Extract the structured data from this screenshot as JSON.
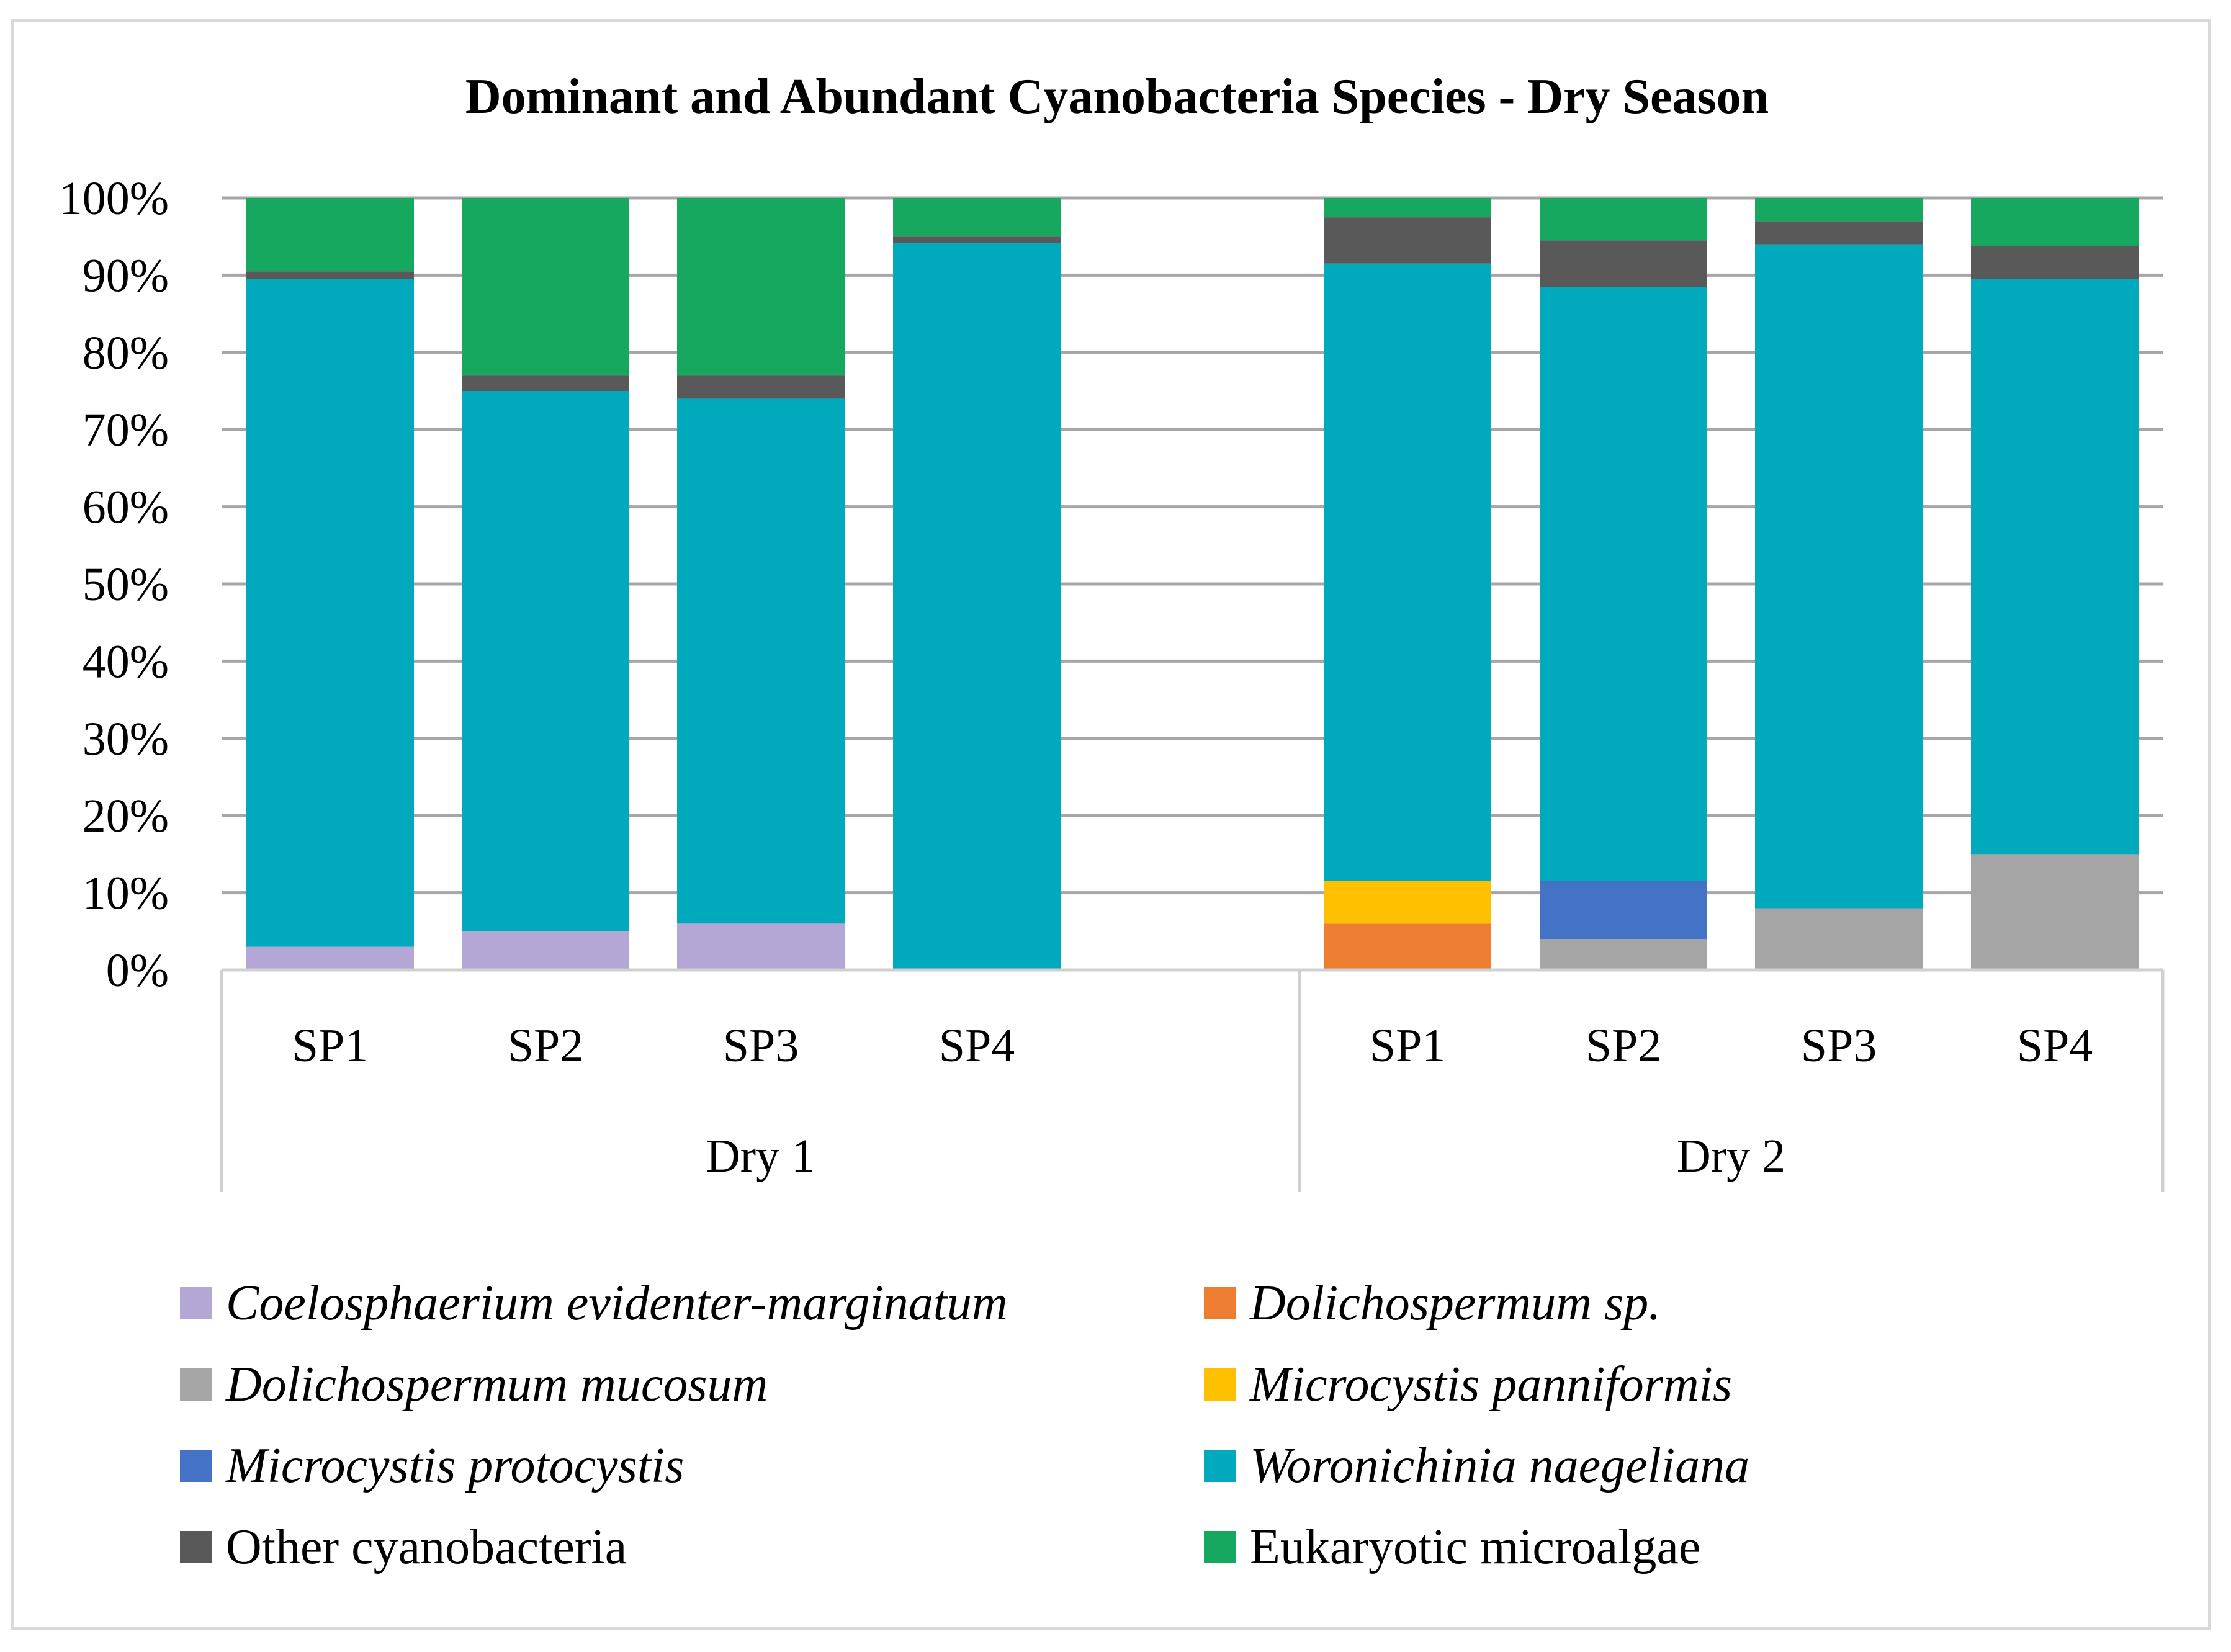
{
  "chart_data": {
    "type": "stacked-bar-100",
    "title": "Dominant and Abundant Cyanobacteria Species - Dry Season",
    "xlabel": "",
    "ylabel": "",
    "ylim": [
      0,
      100
    ],
    "yticks": [
      "0%",
      "10%",
      "20%",
      "30%",
      "40%",
      "50%",
      "60%",
      "70%",
      "80%",
      "90%",
      "100%"
    ],
    "grid": true,
    "legend_position": "bottom",
    "groups": [
      {
        "label": "Dry 1",
        "categories": [
          "SP1",
          "SP2",
          "SP3",
          "SP4"
        ]
      },
      {
        "label": "Dry 2",
        "categories": [
          "SP1",
          "SP2",
          "SP3",
          "SP4"
        ]
      }
    ],
    "series": [
      {
        "name": "Coelosphaerium evidenter-marginatum",
        "italic": true,
        "color": "#b4a7d6",
        "values": [
          [
            3,
            5,
            6,
            0
          ],
          [
            0,
            0,
            0,
            0
          ]
        ]
      },
      {
        "name": "Dolichospermum sp.",
        "italic": true,
        "color": "#ed7d31",
        "values": [
          [
            0,
            0,
            0,
            0
          ],
          [
            6,
            0,
            0,
            0
          ]
        ]
      },
      {
        "name": "Dolichospermum mucosum",
        "italic": true,
        "color": "#a5a5a5",
        "values": [
          [
            0,
            0,
            0,
            0
          ],
          [
            0,
            4,
            8,
            15
          ]
        ]
      },
      {
        "name": "Microcystis panniformis",
        "italic": true,
        "color": "#ffc000",
        "values": [
          [
            0,
            0,
            0,
            0
          ],
          [
            5.5,
            0,
            0,
            0
          ]
        ]
      },
      {
        "name": "Microcystis protocystis",
        "italic": true,
        "color": "#4472c4",
        "values": [
          [
            0,
            0,
            0,
            0
          ],
          [
            0,
            7.5,
            0,
            0
          ]
        ]
      },
      {
        "name": "Woronichinia naegeliana",
        "italic": true,
        "color": "#00a9bb",
        "values": [
          [
            86.5,
            70,
            68,
            94.2
          ],
          [
            80,
            77,
            86,
            74.5
          ]
        ]
      },
      {
        "name": "Other cyanobacteria",
        "italic": false,
        "color": "#595959",
        "values": [
          [
            1,
            2,
            3,
            0.8
          ],
          [
            6,
            6,
            3,
            4.3
          ]
        ]
      },
      {
        "name": "Eukaryotic microalgae",
        "italic": false,
        "color": "#17a860",
        "values": [
          [
            9.5,
            23,
            23,
            5
          ],
          [
            2.5,
            5.5,
            3,
            6.2
          ]
        ]
      }
    ]
  }
}
